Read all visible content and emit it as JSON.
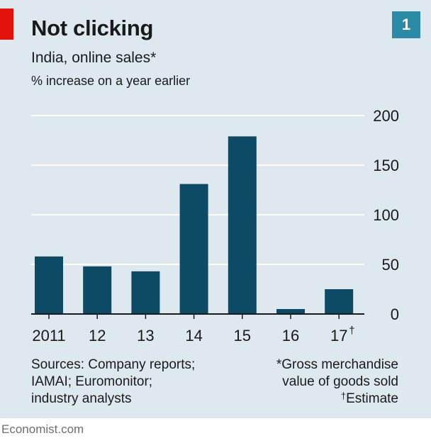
{
  "header": {
    "title": "Not clicking",
    "subtitle": "India, online sales*",
    "unit": "% increase on a year earlier",
    "chart_number": "1"
  },
  "chart_data": {
    "type": "bar",
    "title": "Not clicking",
    "subtitle": "India, online sales*",
    "ylabel": "% increase on a year earlier",
    "xlabel": "",
    "categories": [
      "2011",
      "12",
      "13",
      "14",
      "15",
      "16",
      "17"
    ],
    "category_marks": [
      "",
      "",
      "",
      "",
      "",
      "",
      "†"
    ],
    "values": [
      58,
      48,
      43,
      131,
      179,
      5,
      25
    ],
    "ylim": [
      0,
      200
    ],
    "yticks": [
      0,
      50,
      100,
      150,
      200
    ],
    "y_axis_side": "right",
    "grid": true,
    "bar_color": "#0c4a66",
    "background_color": "#dde8ef",
    "accent_color": "#e3120b"
  },
  "footer": {
    "sources": [
      "Sources: Company reports;",
      "IAMAI; Euromonitor;",
      "industry analysts"
    ],
    "note_1": "*Gross merchandise",
    "note_2": "value of goods sold",
    "note_3_mark": "†",
    "note_3_text": "Estimate",
    "brand": "Economist.com"
  }
}
